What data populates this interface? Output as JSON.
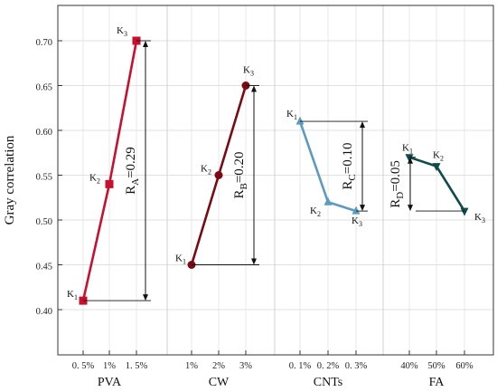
{
  "chart_data": {
    "type": "line",
    "ylabel": "Gray correlation",
    "ylim": [
      0.38,
      0.735
    ],
    "yticks": [
      "0.40",
      "0.45",
      "0.50",
      "0.55",
      "0.60",
      "0.65",
      "0.70"
    ],
    "yticks_values": [
      0.4,
      0.45,
      0.5,
      0.55,
      0.6,
      0.65,
      0.7
    ],
    "grid": true,
    "groups": [
      {
        "label": "PVA",
        "color": "#c8102e",
        "marker": "square",
        "ticks": [
          "0. 5%",
          "1%",
          "1. 5%"
        ],
        "points": [
          {
            "level": "0. 5%",
            "label": "K1",
            "value": 0.41
          },
          {
            "level": "1%",
            "label": "K2",
            "value": 0.54
          },
          {
            "level": "1. 5%",
            "label": "K3",
            "value": 0.7
          }
        ],
        "range_label": "R",
        "range_sub": "A",
        "range_value": "=0.29"
      },
      {
        "label": "CW",
        "color": "#7b0a12",
        "marker": "circle",
        "ticks": [
          "1%",
          "2%",
          "3%"
        ],
        "points": [
          {
            "level": "1%",
            "label": "K1",
            "value": 0.45
          },
          {
            "level": "2%",
            "label": "K2",
            "value": 0.55
          },
          {
            "level": "3%",
            "label": "K3",
            "value": 0.65
          }
        ],
        "range_label": "R",
        "range_sub": "B",
        "range_value": "=0.20"
      },
      {
        "label": "CNTs",
        "color": "#5b9bc2",
        "marker": "triangle-up",
        "ticks": [
          "0. 1%",
          "0. 2%",
          "0. 3%"
        ],
        "points": [
          {
            "level": "0. 1%",
            "label": "K1",
            "value": 0.61
          },
          {
            "level": "0. 2%",
            "label": "K2",
            "value": 0.52
          },
          {
            "level": "0. 3%",
            "label": "K3",
            "value": 0.51
          }
        ],
        "range_label": "R",
        "range_sub": "C",
        "range_value": "=0.10"
      },
      {
        "label": "FA",
        "color": "#0f4b4b",
        "marker": "triangle-down",
        "ticks": [
          "40%",
          "50%",
          "60%"
        ],
        "points": [
          {
            "level": "40%",
            "label": "K1",
            "value": 0.57
          },
          {
            "level": "50%",
            "label": "K2",
            "value": 0.56
          },
          {
            "level": "60%",
            "label": "K3",
            "value": 0.51
          }
        ],
        "range_label": "R",
        "range_sub": "D",
        "range_value": "=0.05"
      }
    ]
  }
}
